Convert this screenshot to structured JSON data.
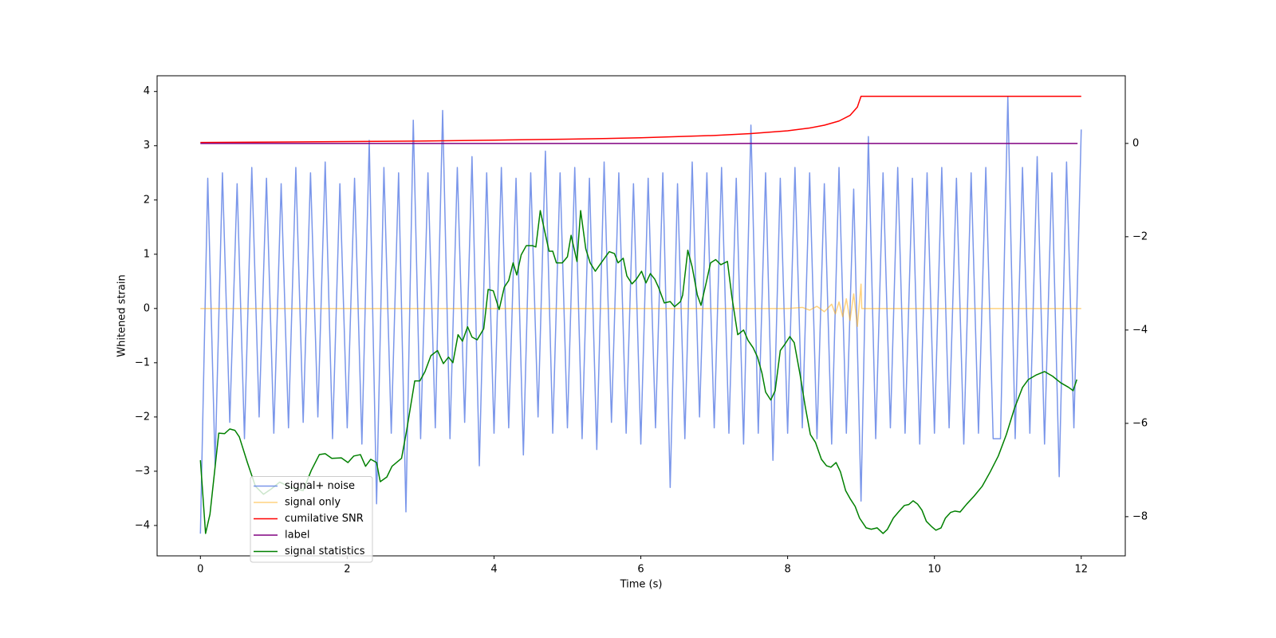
{
  "chart_data": {
    "type": "line",
    "xlabel": "Time (s)",
    "ylabel": "Whitened strain",
    "xlim": [
      -0.59,
      12.6
    ],
    "ylim": [
      -4.56,
      4.29
    ],
    "y2lim": [
      -8.84,
      1.45
    ],
    "xticks": [
      0,
      2,
      4,
      6,
      8,
      10,
      12
    ],
    "yticks": [
      {
        "value": -4,
        "label": "−4"
      },
      {
        "value": -3,
        "label": "−3"
      },
      {
        "value": -2,
        "label": "−2"
      },
      {
        "value": -1,
        "label": "−1"
      },
      0,
      1,
      2,
      3,
      4
    ],
    "y2ticks": [
      {
        "value": -8,
        "label": "−8"
      },
      {
        "value": -6,
        "label": "−6"
      },
      {
        "value": -4,
        "label": "−4"
      },
      {
        "value": -2,
        "label": "−2"
      },
      0
    ],
    "legend": "lower left",
    "series": [
      {
        "name": "signal+ noise",
        "color": "#4169e1",
        "axis": "y",
        "x": [
          0,
          0.1,
          0.2,
          0.3,
          0.4,
          0.5,
          0.6,
          0.7,
          0.8,
          0.9,
          1,
          1.1,
          1.2,
          1.3,
          1.4,
          1.5,
          1.6,
          1.7,
          1.8,
          1.9,
          2,
          2.1,
          2.2,
          2.3,
          2.4,
          2.5,
          2.6,
          2.7,
          2.8,
          2.9,
          3,
          3.1,
          3.2,
          3.3,
          3.4,
          3.5,
          3.6,
          3.7,
          3.8,
          3.9,
          4,
          4.1,
          4.2,
          4.3,
          4.4,
          4.5,
          4.6,
          4.7,
          4.8,
          4.9,
          5,
          5.1,
          5.2,
          5.3,
          5.4,
          5.5,
          5.6,
          5.7,
          5.8,
          5.9,
          6,
          6.1,
          6.2,
          6.3,
          6.4,
          6.5,
          6.6,
          6.7,
          6.8,
          6.9,
          7,
          7.1,
          7.2,
          7.3,
          7.4,
          7.5,
          7.6,
          7.7,
          7.8,
          7.9,
          8,
          8.1,
          8.2,
          8.3,
          8.4,
          8.5,
          8.6,
          8.7,
          8.8,
          8.9,
          9,
          9.1,
          9.2,
          9.3,
          9.4,
          9.5,
          9.6,
          9.7,
          9.8,
          9.9,
          10,
          10.1,
          10.2,
          10.3,
          10.4,
          10.5,
          10.6,
          10.7,
          10.8,
          10.9,
          11,
          11.1,
          11.2,
          11.3,
          11.4,
          11.5,
          11.6,
          11.7,
          11.8,
          11.9,
          12
        ],
        "values": [
          -4.15,
          2.4,
          -2.9,
          2.5,
          -2.1,
          2.3,
          -2.4,
          2.6,
          -2.0,
          2.4,
          -2.3,
          2.3,
          -2.2,
          2.6,
          -2.1,
          2.5,
          -2.0,
          2.7,
          -2.4,
          2.3,
          -2.2,
          2.4,
          -2.5,
          3.1,
          -3.6,
          2.6,
          -2.3,
          2.5,
          -3.75,
          3.47,
          -2.4,
          2.5,
          -2.2,
          3.65,
          -2.4,
          2.6,
          -2.1,
          2.8,
          -2.9,
          2.5,
          -2.3,
          2.6,
          -2.2,
          2.4,
          -2.7,
          2.5,
          -2.0,
          2.9,
          -2.3,
          2.5,
          -2.2,
          2.6,
          -2.4,
          2.4,
          -2.6,
          2.7,
          -2.1,
          2.5,
          -2.3,
          2.3,
          -2.5,
          2.4,
          -2.2,
          2.5,
          -3.3,
          2.3,
          -2.4,
          2.7,
          -2.0,
          2.5,
          -2.2,
          2.6,
          -2.3,
          2.4,
          -2.5,
          3.38,
          -2.3,
          2.5,
          -2.8,
          2.4,
          -2.3,
          2.6,
          -2.2,
          2.5,
          -2.4,
          2.3,
          -2.5,
          2.6,
          -2.3,
          2.2,
          -3.55,
          3.17,
          -2.4,
          2.5,
          -2.2,
          2.6,
          -2.3,
          2.4,
          -2.5,
          2.5,
          -2.3,
          2.6,
          -2.2,
          2.4,
          -2.5,
          2.5,
          -2.3,
          2.6,
          -2.4,
          -2.4,
          3.91,
          -2.4,
          2.6,
          -2.3,
          2.8,
          -2.5,
          2.5,
          -3.1,
          2.7,
          -2.2,
          3.3
        ]
      },
      {
        "name": "signal only",
        "color": "#ffa500",
        "axis": "y",
        "x": [
          0,
          8.0,
          8.2,
          8.3,
          8.4,
          8.5,
          8.6,
          8.65,
          8.7,
          8.75,
          8.8,
          8.85,
          8.9,
          8.95,
          9.0,
          9.01,
          12
        ],
        "values": [
          0,
          0,
          0.02,
          -0.03,
          0.04,
          -0.06,
          0.08,
          -0.1,
          0.12,
          -0.15,
          0.18,
          -0.22,
          0.27,
          -0.33,
          0.45,
          0,
          0
        ]
      },
      {
        "name": "cumilative SNR",
        "color": "#ff0000",
        "axis": "y2",
        "x": [
          0,
          1,
          2,
          3,
          4,
          5,
          6,
          7,
          7.5,
          8,
          8.3,
          8.5,
          8.7,
          8.85,
          8.95,
          9.0,
          12
        ],
        "values": [
          0.02,
          0.03,
          0.04,
          0.05,
          0.07,
          0.09,
          0.12,
          0.17,
          0.21,
          0.27,
          0.33,
          0.39,
          0.48,
          0.6,
          0.78,
          1.01,
          1.01
        ]
      },
      {
        "name": "label",
        "color": "#800080",
        "axis": "y2",
        "x": [
          0,
          11.95
        ],
        "values": [
          0,
          0
        ]
      },
      {
        "name": "signal statistics",
        "color": "#008000",
        "axis": "y2",
        "x": [
          0,
          0.07,
          0.13,
          0.25,
          0.33,
          0.4,
          0.47,
          0.53,
          0.64,
          0.75,
          0.86,
          0.97,
          1.08,
          1.24,
          1.4,
          1.51,
          1.62,
          1.7,
          1.79,
          1.92,
          2.01,
          2.09,
          2.18,
          2.25,
          2.32,
          2.4,
          2.45,
          2.54,
          2.61,
          2.74,
          2.81,
          2.92,
          2.99,
          3.06,
          3.14,
          3.23,
          3.31,
          3.38,
          3.44,
          3.51,
          3.57,
          3.64,
          3.7,
          3.77,
          3.86,
          3.92,
          3.99,
          4.07,
          4.14,
          4.2,
          4.26,
          4.31,
          4.37,
          4.44,
          4.52,
          4.57,
          4.63,
          4.69,
          4.75,
          4.8,
          4.85,
          4.93,
          5.0,
          5.05,
          5.13,
          5.18,
          5.25,
          5.31,
          5.38,
          5.46,
          5.57,
          5.64,
          5.69,
          5.76,
          5.81,
          5.88,
          5.94,
          6.01,
          6.07,
          6.13,
          6.19,
          6.24,
          6.32,
          6.4,
          6.46,
          6.54,
          6.57,
          6.64,
          6.7,
          6.77,
          6.82,
          6.89,
          6.95,
          7.02,
          7.09,
          7.18,
          7.24,
          7.32,
          7.4,
          7.46,
          7.53,
          7.59,
          7.65,
          7.7,
          7.77,
          7.83,
          7.9,
          7.96,
          8.03,
          8.09,
          8.17,
          8.24,
          8.31,
          8.38,
          8.46,
          8.53,
          8.59,
          8.66,
          8.72,
          8.79,
          8.85,
          8.92,
          8.98,
          9.07,
          9.14,
          9.22,
          9.3,
          9.36,
          9.44,
          9.51,
          9.59,
          9.65,
          9.71,
          9.77,
          9.83,
          9.89,
          9.96,
          10.02,
          10.09,
          10.15,
          10.22,
          10.28,
          10.35,
          10.44,
          10.54,
          10.65,
          10.76,
          10.87,
          10.98,
          11.09,
          11.2,
          11.28,
          11.39,
          11.5,
          11.61,
          11.72,
          11.83,
          11.89,
          11.94
        ],
        "values": [
          -6.79,
          -8.36,
          -7.95,
          -6.21,
          -6.22,
          -6.12,
          -6.15,
          -6.29,
          -6.84,
          -7.35,
          -7.52,
          -7.4,
          -7.26,
          -7.38,
          -7.44,
          -7.01,
          -6.67,
          -6.65,
          -6.75,
          -6.74,
          -6.84,
          -6.7,
          -6.67,
          -6.92,
          -6.77,
          -6.84,
          -7.25,
          -7.15,
          -6.92,
          -6.75,
          -6.15,
          -5.09,
          -5.09,
          -4.89,
          -4.55,
          -4.44,
          -4.72,
          -4.58,
          -4.7,
          -4.1,
          -4.24,
          -3.93,
          -4.15,
          -4.21,
          -3.97,
          -3.13,
          -3.16,
          -3.56,
          -3.08,
          -2.94,
          -2.56,
          -2.82,
          -2.39,
          -2.19,
          -2.19,
          -2.22,
          -1.44,
          -1.88,
          -2.31,
          -2.31,
          -2.56,
          -2.56,
          -2.43,
          -1.97,
          -2.53,
          -1.44,
          -2.26,
          -2.56,
          -2.74,
          -2.56,
          -2.32,
          -2.36,
          -2.56,
          -2.46,
          -2.84,
          -3.01,
          -2.91,
          -2.74,
          -2.99,
          -2.79,
          -2.91,
          -3.08,
          -3.42,
          -3.39,
          -3.5,
          -3.39,
          -3.25,
          -2.29,
          -2.65,
          -3.25,
          -3.47,
          -2.99,
          -2.56,
          -2.49,
          -2.6,
          -2.53,
          -3.28,
          -4.1,
          -4.0,
          -4.22,
          -4.38,
          -4.58,
          -4.92,
          -5.33,
          -5.5,
          -5.3,
          -4.44,
          -4.31,
          -4.14,
          -4.27,
          -4.96,
          -5.64,
          -6.24,
          -6.41,
          -6.77,
          -6.91,
          -6.94,
          -6.84,
          -7.04,
          -7.44,
          -7.61,
          -7.78,
          -8.03,
          -8.24,
          -8.27,
          -8.24,
          -8.36,
          -8.27,
          -8.03,
          -7.9,
          -7.76,
          -7.74,
          -7.66,
          -7.73,
          -7.86,
          -8.1,
          -8.21,
          -8.29,
          -8.24,
          -8.03,
          -7.91,
          -7.88,
          -7.9,
          -7.73,
          -7.56,
          -7.35,
          -7.04,
          -6.7,
          -6.24,
          -5.68,
          -5.23,
          -5.06,
          -4.96,
          -4.89,
          -4.99,
          -5.13,
          -5.23,
          -5.3,
          -5.06
        ]
      }
    ]
  }
}
